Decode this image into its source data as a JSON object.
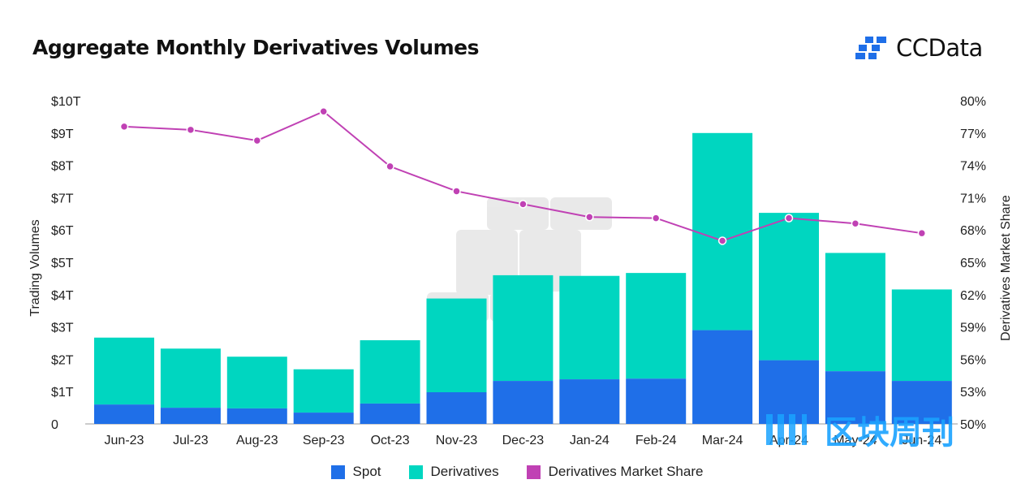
{
  "header": {
    "title": "Aggregate Monthly Derivatives Volumes",
    "logo_text": "CCData"
  },
  "watermark": {
    "text": "区块周刊"
  },
  "colors": {
    "spot": "#1f6fe8",
    "derivatives": "#00d6c0",
    "share": "#c041b4",
    "axis_text": "#222222",
    "baseline": "#999999"
  },
  "chart_data": {
    "type": "bar",
    "stacked": true,
    "title": "Aggregate Monthly Derivatives Volumes",
    "ylabel": "Trading Volumes",
    "y2label": "Derivatives Market Share",
    "ylim": [
      0,
      10
    ],
    "y2lim": [
      50,
      80
    ],
    "yticks": [
      "0",
      "$1T",
      "$2T",
      "$3T",
      "$4T",
      "$5T",
      "$6T",
      "$7T",
      "$8T",
      "$9T",
      "$10T"
    ],
    "y2ticks": [
      "50%",
      "53%",
      "56%",
      "59%",
      "62%",
      "65%",
      "68%",
      "71%",
      "74%",
      "77%",
      "80%"
    ],
    "categories": [
      "Jun-23",
      "Jul-23",
      "Aug-23",
      "Sep-23",
      "Oct-23",
      "Nov-23",
      "Dec-23",
      "Jan-24",
      "Feb-24",
      "Mar-24",
      "Apr-24",
      "May-24",
      "Jun-24"
    ],
    "series": [
      {
        "name": "Spot",
        "values": [
          0.6,
          0.5,
          0.48,
          0.35,
          0.63,
          0.98,
          1.33,
          1.38,
          1.4,
          2.9,
          1.97,
          1.63,
          1.33
        ]
      },
      {
        "name": "Derivatives",
        "values": [
          2.07,
          1.83,
          1.6,
          1.34,
          1.96,
          2.9,
          3.27,
          3.2,
          3.27,
          6.1,
          4.56,
          3.66,
          2.83
        ]
      },
      {
        "name": "Derivatives Market Share",
        "axis": "right",
        "values": [
          77.6,
          77.3,
          76.3,
          79.0,
          73.9,
          71.6,
          70.4,
          69.2,
          69.1,
          67.0,
          69.1,
          68.6,
          67.7
        ]
      }
    ],
    "legend": [
      "Spot",
      "Derivatives",
      "Derivatives Market Share"
    ],
    "legend_position": "bottom"
  }
}
